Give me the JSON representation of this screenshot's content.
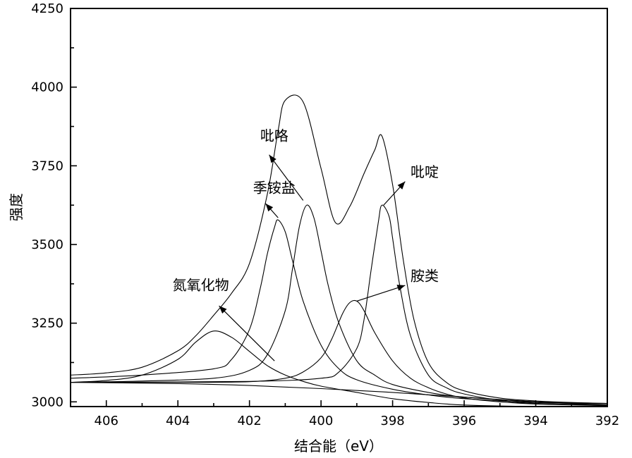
{
  "chart_data": {
    "type": "line",
    "xlabel": "结合能（eV）",
    "ylabel": "强度",
    "xlim": [
      407,
      392
    ],
    "ylim": [
      2985,
      4250
    ],
    "x_ticks": [
      406,
      404,
      402,
      400,
      398,
      396,
      394,
      392
    ],
    "y_ticks": [
      3000,
      3250,
      3500,
      3750,
      4000,
      4250
    ],
    "x_reversed": true,
    "grid": false,
    "legend": "none",
    "series": [
      {
        "x": [
          407,
          406,
          405,
          404,
          403.5,
          403,
          402.5,
          402,
          401.5,
          401.2,
          401,
          400.5,
          400,
          399.6,
          399.2,
          398.8,
          398.5,
          398.3,
          398,
          397.7,
          397.4,
          397,
          396.5,
          396,
          395,
          394,
          393,
          392
        ],
        "y": [
          3085,
          3092,
          3110,
          3162,
          3210,
          3275,
          3345,
          3440,
          3660,
          3862,
          3958,
          3953,
          3742,
          3570,
          3620,
          3725,
          3800,
          3845,
          3690,
          3450,
          3260,
          3125,
          3062,
          3035,
          3012,
          3003,
          2998,
          2995
        ]
      },
      {
        "x": [
          407,
          406,
          405,
          404,
          403.5,
          403,
          402.5,
          402,
          401.5,
          401,
          400.5,
          400,
          399,
          398,
          397,
          396,
          394,
          392
        ],
        "y": [
          3062,
          3068,
          3085,
          3135,
          3190,
          3225,
          3205,
          3160,
          3115,
          3085,
          3065,
          3050,
          3030,
          3010,
          2998,
          2990,
          2985,
          2985
        ]
      },
      {
        "x": [
          407,
          405,
          403,
          402.5,
          402,
          401.7,
          401.5,
          401.3,
          401.2,
          401,
          400.8,
          400.5,
          400,
          399.5,
          399,
          398,
          397,
          396,
          394,
          392
        ],
        "y": [
          3075,
          3085,
          3105,
          3135,
          3230,
          3360,
          3470,
          3555,
          3578,
          3540,
          3450,
          3320,
          3180,
          3105,
          3070,
          3040,
          3022,
          3010,
          2998,
          2994
        ]
      },
      {
        "x": [
          407,
          405,
          403,
          402,
          401.5,
          401,
          400.8,
          400.6,
          400.4,
          400.2,
          400,
          399.8,
          399.5,
          399,
          398.5,
          398,
          397,
          396,
          394,
          392
        ],
        "y": [
          3062,
          3066,
          3075,
          3100,
          3150,
          3290,
          3420,
          3560,
          3625,
          3585,
          3480,
          3370,
          3250,
          3130,
          3085,
          3055,
          3030,
          3015,
          3000,
          2994
        ]
      },
      {
        "x": [
          407,
          404,
          402,
          401,
          400.5,
          400,
          399.7,
          399.4,
          399.2,
          399,
          398.8,
          398.5,
          398,
          397.5,
          397,
          396.5,
          396,
          395,
          394,
          392
        ],
        "y": [
          3062,
          3062,
          3064,
          3075,
          3095,
          3140,
          3200,
          3280,
          3315,
          3320,
          3290,
          3220,
          3130,
          3075,
          3045,
          3025,
          3012,
          3000,
          2993,
          2988
        ]
      },
      {
        "x": [
          407,
          402,
          400,
          399.5,
          399,
          398.8,
          398.6,
          398.4,
          398.3,
          398.1,
          398,
          397.8,
          397.5,
          397,
          396.5,
          396,
          395,
          394,
          392
        ],
        "y": [
          3062,
          3065,
          3075,
          3095,
          3170,
          3260,
          3420,
          3570,
          3625,
          3590,
          3520,
          3370,
          3210,
          3085,
          3045,
          3025,
          3005,
          2995,
          2990
        ]
      },
      {
        "x": [
          407,
          404,
          402,
          400,
          398,
          396,
          394,
          392
        ],
        "y": [
          3062,
          3058,
          3052,
          3042,
          3030,
          3015,
          3000,
          2990
        ]
      }
    ],
    "annotations": [
      {
        "text": "吡咯",
        "label_x": 401.7,
        "label_y": 3830,
        "tip_x": 401.45,
        "tip_y": 3785,
        "tail_x": 400.5,
        "tail_y": 3640
      },
      {
        "text": "季铵盐",
        "label_x": 401.9,
        "label_y": 3665,
        "tip_x": 401.55,
        "tip_y": 3630,
        "tail_x": 401.2,
        "tail_y": 3585
      },
      {
        "text": "吡啶",
        "label_x": 397.5,
        "label_y": 3715,
        "tip_x": 397.65,
        "tip_y": 3700,
        "tail_x": 398.25,
        "tail_y": 3625
      },
      {
        "text": "胺类",
        "label_x": 397.5,
        "label_y": 3385,
        "tip_x": 397.65,
        "tip_y": 3370,
        "tail_x": 399.0,
        "tail_y": 3320
      },
      {
        "text": "氮氧化物",
        "label_x": 404.15,
        "label_y": 3355,
        "tip_x": 402.85,
        "tip_y": 3305,
        "tail_x": 401.3,
        "tail_y": 3130
      }
    ]
  }
}
